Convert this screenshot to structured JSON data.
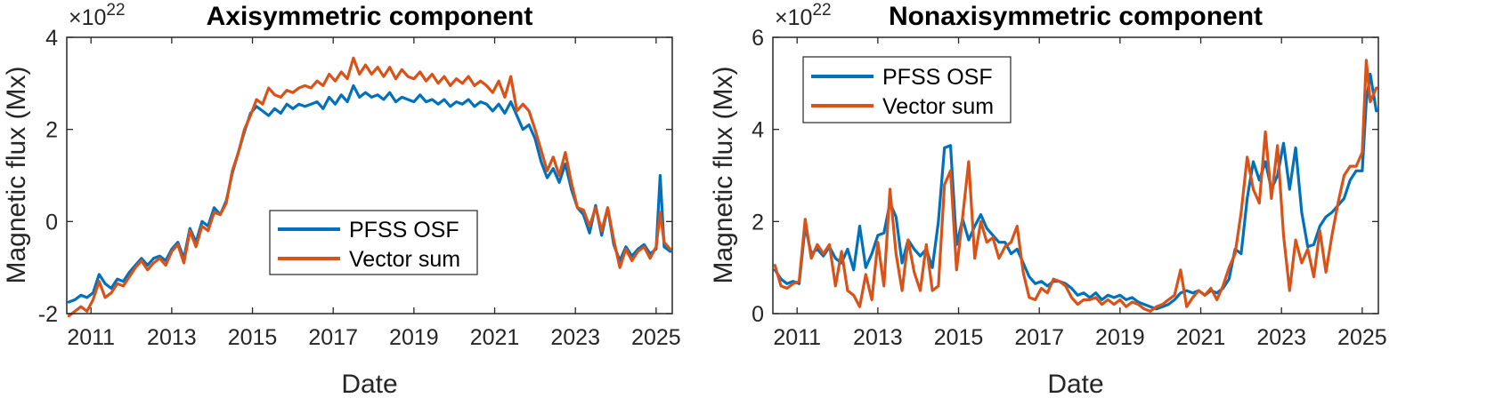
{
  "chart_data": [
    {
      "type": "line",
      "title": "Axisymmetric component",
      "xlabel": "Date",
      "ylabel": "Magnetic flux (Mx)",
      "y_exponent_prefix": "×10",
      "y_exponent_power": "22",
      "xlim": [
        2010.4,
        2025.4
      ],
      "ylim": [
        -2,
        4
      ],
      "xticks": [
        2011,
        2013,
        2015,
        2017,
        2019,
        2021,
        2023,
        2025
      ],
      "xtick_labels": [
        "2011",
        "2013",
        "2015",
        "2017",
        "2019",
        "2021",
        "2023",
        "2025"
      ],
      "yticks": [
        -2,
        0,
        2,
        4
      ],
      "ytick_labels": [
        "-2",
        "0",
        "2",
        "4"
      ],
      "legend_position": "center-right",
      "series": [
        {
          "name": "PFSS OSF",
          "color": "#0072BD",
          "x": [
            2010.45,
            2010.6,
            2010.75,
            2010.9,
            2011.05,
            2011.2,
            2011.35,
            2011.5,
            2011.65,
            2011.8,
            2011.95,
            2012.1,
            2012.25,
            2012.4,
            2012.55,
            2012.7,
            2012.85,
            2013.0,
            2013.15,
            2013.3,
            2013.45,
            2013.6,
            2013.75,
            2013.9,
            2014.05,
            2014.2,
            2014.35,
            2014.5,
            2014.65,
            2014.8,
            2014.95,
            2015.1,
            2015.25,
            2015.4,
            2015.55,
            2015.7,
            2015.85,
            2016.0,
            2016.15,
            2016.3,
            2016.45,
            2016.6,
            2016.75,
            2016.9,
            2017.05,
            2017.2,
            2017.35,
            2017.5,
            2017.65,
            2017.8,
            2017.95,
            2018.1,
            2018.25,
            2018.4,
            2018.55,
            2018.7,
            2018.85,
            2019.0,
            2019.15,
            2019.3,
            2019.45,
            2019.6,
            2019.75,
            2019.9,
            2020.05,
            2020.2,
            2020.35,
            2020.5,
            2020.65,
            2020.8,
            2020.95,
            2021.1,
            2021.25,
            2021.4,
            2021.55,
            2021.7,
            2021.85,
            2022.0,
            2022.15,
            2022.3,
            2022.45,
            2022.6,
            2022.75,
            2022.9,
            2023.05,
            2023.2,
            2023.35,
            2023.5,
            2023.65,
            2023.8,
            2023.95,
            2024.1,
            2024.25,
            2024.4,
            2024.55,
            2024.7,
            2024.85,
            2025.0,
            2025.1,
            2025.2,
            2025.35
          ],
          "y": [
            -1.75,
            -1.7,
            -1.6,
            -1.65,
            -1.55,
            -1.15,
            -1.35,
            -1.45,
            -1.25,
            -1.3,
            -1.1,
            -0.95,
            -0.8,
            -0.95,
            -0.8,
            -0.75,
            -0.85,
            -0.6,
            -0.45,
            -0.8,
            -0.15,
            -0.45,
            0.0,
            -0.1,
            0.3,
            0.15,
            0.45,
            1.05,
            1.5,
            1.95,
            2.35,
            2.5,
            2.4,
            2.3,
            2.45,
            2.35,
            2.55,
            2.45,
            2.55,
            2.5,
            2.55,
            2.6,
            2.45,
            2.7,
            2.55,
            2.75,
            2.6,
            2.95,
            2.7,
            2.8,
            2.7,
            2.75,
            2.65,
            2.8,
            2.6,
            2.7,
            2.65,
            2.6,
            2.75,
            2.6,
            2.65,
            2.55,
            2.65,
            2.5,
            2.6,
            2.55,
            2.65,
            2.5,
            2.6,
            2.55,
            2.4,
            2.55,
            2.35,
            2.6,
            2.3,
            2.0,
            2.1,
            1.8,
            1.3,
            0.95,
            1.15,
            0.85,
            1.25,
            0.7,
            0.3,
            0.15,
            -0.25,
            0.35,
            -0.3,
            0.3,
            -0.5,
            -0.85,
            -0.55,
            -0.75,
            -0.6,
            -0.5,
            -0.7,
            -0.6,
            1.0,
            -0.55,
            -0.65
          ]
        },
        {
          "name": "Vector sum",
          "color": "#D95319",
          "x": [
            2010.45,
            2010.6,
            2010.75,
            2010.9,
            2011.05,
            2011.2,
            2011.35,
            2011.5,
            2011.65,
            2011.8,
            2011.95,
            2012.1,
            2012.25,
            2012.4,
            2012.55,
            2012.7,
            2012.85,
            2013.0,
            2013.15,
            2013.3,
            2013.45,
            2013.6,
            2013.75,
            2013.9,
            2014.05,
            2014.2,
            2014.35,
            2014.5,
            2014.65,
            2014.8,
            2014.95,
            2015.1,
            2015.25,
            2015.4,
            2015.55,
            2015.7,
            2015.85,
            2016.0,
            2016.15,
            2016.3,
            2016.45,
            2016.6,
            2016.75,
            2016.9,
            2017.05,
            2017.2,
            2017.35,
            2017.5,
            2017.65,
            2017.8,
            2017.95,
            2018.1,
            2018.25,
            2018.4,
            2018.55,
            2018.7,
            2018.85,
            2019.0,
            2019.15,
            2019.3,
            2019.45,
            2019.6,
            2019.75,
            2019.9,
            2020.05,
            2020.2,
            2020.35,
            2020.5,
            2020.65,
            2020.8,
            2020.95,
            2021.1,
            2021.25,
            2021.4,
            2021.55,
            2021.7,
            2021.85,
            2022.0,
            2022.15,
            2022.3,
            2022.45,
            2022.6,
            2022.75,
            2022.9,
            2023.05,
            2023.2,
            2023.35,
            2023.5,
            2023.65,
            2023.8,
            2023.95,
            2024.1,
            2024.25,
            2024.4,
            2024.55,
            2024.7,
            2024.85,
            2025.0,
            2025.1,
            2025.2,
            2025.35
          ],
          "y": [
            -2.05,
            -1.95,
            -1.85,
            -1.95,
            -1.7,
            -1.3,
            -1.65,
            -1.55,
            -1.35,
            -1.4,
            -1.2,
            -1.0,
            -0.85,
            -1.05,
            -0.9,
            -0.8,
            -0.95,
            -0.65,
            -0.5,
            -0.9,
            -0.2,
            -0.55,
            -0.1,
            -0.2,
            0.2,
            0.15,
            0.4,
            1.1,
            1.5,
            2.0,
            2.3,
            2.65,
            2.55,
            2.9,
            2.75,
            2.7,
            2.85,
            2.8,
            2.9,
            2.95,
            2.9,
            3.05,
            2.95,
            3.2,
            3.05,
            3.25,
            3.1,
            3.55,
            3.2,
            3.4,
            3.2,
            3.35,
            3.15,
            3.35,
            3.1,
            3.3,
            3.15,
            3.1,
            3.25,
            3.05,
            3.2,
            3.0,
            3.15,
            2.95,
            3.1,
            3.0,
            3.15,
            2.95,
            3.05,
            2.95,
            2.8,
            3.05,
            2.7,
            3.15,
            2.4,
            2.55,
            2.4,
            2.0,
            1.55,
            1.1,
            1.4,
            1.0,
            1.5,
            0.85,
            0.3,
            0.25,
            -0.1,
            0.3,
            -0.2,
            0.3,
            -0.4,
            -1.0,
            -0.6,
            -0.85,
            -0.65,
            -0.55,
            -0.8,
            -0.55,
            0.2,
            -0.45,
            -0.6
          ]
        }
      ]
    },
    {
      "type": "line",
      "title": "Nonaxisymmetric component",
      "xlabel": "Date",
      "ylabel": "Magnetic flux (Mx)",
      "y_exponent_prefix": "×10",
      "y_exponent_power": "22",
      "xlim": [
        2010.4,
        2025.4
      ],
      "ylim": [
        0,
        6
      ],
      "xticks": [
        2011,
        2013,
        2015,
        2017,
        2019,
        2021,
        2023,
        2025
      ],
      "xtick_labels": [
        "2011",
        "2013",
        "2015",
        "2017",
        "2019",
        "2021",
        "2023",
        "2025"
      ],
      "yticks": [
        0,
        2,
        4,
        6
      ],
      "ytick_labels": [
        "0",
        "2",
        "4",
        "6"
      ],
      "legend_position": "top-left",
      "series": [
        {
          "name": "PFSS OSF",
          "color": "#0072BD",
          "x": [
            2010.45,
            2010.6,
            2010.75,
            2010.9,
            2011.05,
            2011.2,
            2011.35,
            2011.5,
            2011.65,
            2011.8,
            2011.95,
            2012.1,
            2012.25,
            2012.4,
            2012.55,
            2012.7,
            2012.85,
            2013.0,
            2013.15,
            2013.3,
            2013.45,
            2013.6,
            2013.75,
            2013.9,
            2014.05,
            2014.2,
            2014.35,
            2014.5,
            2014.65,
            2014.8,
            2014.95,
            2015.1,
            2015.25,
            2015.4,
            2015.55,
            2015.7,
            2015.85,
            2016.0,
            2016.15,
            2016.3,
            2016.45,
            2016.6,
            2016.75,
            2016.9,
            2017.05,
            2017.2,
            2017.35,
            2017.5,
            2017.65,
            2017.8,
            2017.95,
            2018.1,
            2018.25,
            2018.4,
            2018.55,
            2018.7,
            2018.85,
            2019.0,
            2019.15,
            2019.3,
            2019.45,
            2019.6,
            2019.75,
            2019.9,
            2020.05,
            2020.2,
            2020.35,
            2020.5,
            2020.65,
            2020.8,
            2020.95,
            2021.1,
            2021.25,
            2021.4,
            2021.55,
            2021.7,
            2021.85,
            2022.0,
            2022.15,
            2022.3,
            2022.45,
            2022.6,
            2022.75,
            2022.9,
            2023.05,
            2023.2,
            2023.35,
            2023.5,
            2023.65,
            2023.8,
            2023.95,
            2024.1,
            2024.25,
            2024.4,
            2024.55,
            2024.7,
            2024.85,
            2025.0,
            2025.1,
            2025.2,
            2025.35
          ],
          "y": [
            0.95,
            0.75,
            0.65,
            0.7,
            0.65,
            1.9,
            1.3,
            1.4,
            1.25,
            1.45,
            1.2,
            1.1,
            1.4,
            0.95,
            1.9,
            1.0,
            1.3,
            1.7,
            1.75,
            2.4,
            2.1,
            1.1,
            1.6,
            1.4,
            1.25,
            1.4,
            1.0,
            2.0,
            3.6,
            3.65,
            1.5,
            2.05,
            1.6,
            1.9,
            2.15,
            1.85,
            1.7,
            1.55,
            1.55,
            1.3,
            1.4,
            1.1,
            0.8,
            0.65,
            0.7,
            0.6,
            0.7,
            0.7,
            0.65,
            0.55,
            0.4,
            0.45,
            0.35,
            0.45,
            0.3,
            0.4,
            0.35,
            0.4,
            0.3,
            0.35,
            0.25,
            0.2,
            0.15,
            0.1,
            0.15,
            0.2,
            0.3,
            0.45,
            0.5,
            0.45,
            0.5,
            0.4,
            0.5,
            0.45,
            0.55,
            0.75,
            1.4,
            1.3,
            2.5,
            3.3,
            2.9,
            3.3,
            2.7,
            3.0,
            3.7,
            2.7,
            3.6,
            2.2,
            1.45,
            1.5,
            1.9,
            2.1,
            2.2,
            2.35,
            2.5,
            2.9,
            3.1,
            3.1,
            4.6,
            5.2,
            4.4
          ]
        },
        {
          "name": "Vector sum",
          "color": "#D95319",
          "x": [
            2010.45,
            2010.6,
            2010.75,
            2010.9,
            2011.05,
            2011.2,
            2011.35,
            2011.5,
            2011.65,
            2011.8,
            2011.95,
            2012.1,
            2012.25,
            2012.4,
            2012.55,
            2012.7,
            2012.85,
            2013.0,
            2013.15,
            2013.3,
            2013.45,
            2013.6,
            2013.75,
            2013.9,
            2014.05,
            2014.2,
            2014.35,
            2014.5,
            2014.65,
            2014.8,
            2014.95,
            2015.1,
            2015.25,
            2015.4,
            2015.55,
            2015.7,
            2015.85,
            2016.0,
            2016.15,
            2016.3,
            2016.45,
            2016.6,
            2016.75,
            2016.9,
            2017.05,
            2017.2,
            2017.35,
            2017.5,
            2017.65,
            2017.8,
            2017.95,
            2018.1,
            2018.25,
            2018.4,
            2018.55,
            2018.7,
            2018.85,
            2019.0,
            2019.15,
            2019.3,
            2019.45,
            2019.6,
            2019.75,
            2019.9,
            2020.05,
            2020.2,
            2020.35,
            2020.5,
            2020.65,
            2020.8,
            2020.95,
            2021.1,
            2021.25,
            2021.4,
            2021.55,
            2021.7,
            2021.85,
            2022.0,
            2022.15,
            2022.3,
            2022.45,
            2022.6,
            2022.75,
            2022.9,
            2023.05,
            2023.2,
            2023.35,
            2023.5,
            2023.65,
            2023.8,
            2023.95,
            2024.1,
            2024.25,
            2024.4,
            2024.55,
            2024.7,
            2024.85,
            2025.0,
            2025.1,
            2025.2,
            2025.35
          ],
          "y": [
            1.05,
            0.6,
            0.55,
            0.65,
            0.7,
            2.05,
            1.2,
            1.5,
            1.3,
            1.5,
            0.6,
            1.35,
            0.5,
            0.4,
            0.15,
            0.85,
            0.3,
            1.55,
            0.6,
            2.7,
            1.3,
            0.5,
            1.6,
            0.9,
            0.5,
            1.5,
            0.5,
            0.6,
            2.8,
            3.1,
            0.95,
            2.1,
            3.3,
            1.2,
            2.0,
            1.55,
            1.65,
            1.2,
            1.45,
            1.55,
            1.9,
            0.9,
            0.35,
            0.3,
            0.55,
            0.45,
            0.75,
            0.7,
            0.6,
            0.35,
            0.2,
            0.3,
            0.3,
            0.35,
            0.2,
            0.3,
            0.2,
            0.3,
            0.15,
            0.25,
            0.2,
            0.1,
            0.05,
            0.15,
            0.2,
            0.3,
            0.4,
            0.95,
            0.15,
            0.35,
            0.5,
            0.4,
            0.55,
            0.3,
            0.6,
            1.0,
            1.3,
            2.2,
            3.4,
            2.7,
            2.4,
            3.95,
            2.5,
            3.65,
            1.7,
            0.5,
            1.6,
            1.1,
            1.4,
            0.8,
            1.8,
            0.9,
            1.7,
            2.4,
            3.0,
            3.2,
            3.2,
            3.5,
            5.5,
            4.6,
            4.9
          ]
        }
      ]
    }
  ]
}
